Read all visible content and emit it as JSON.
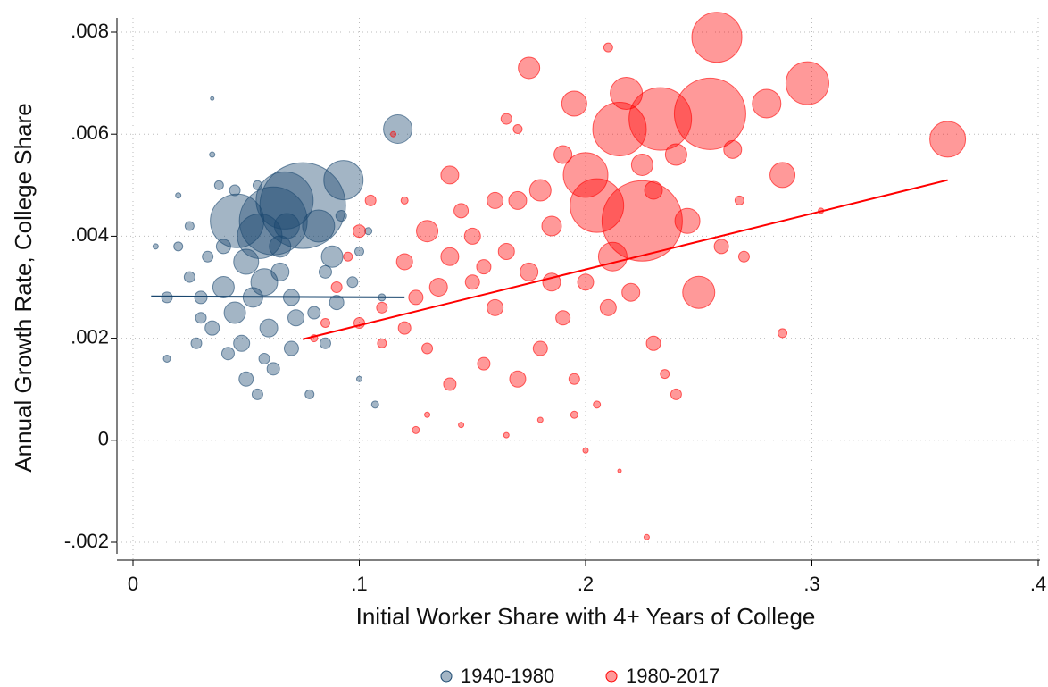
{
  "chart_data": {
    "type": "scatter",
    "x_label": "Initial Worker Share with 4+ Years of College",
    "y_label": "Annual Growth Rate, College Share",
    "xlim": [
      0,
      0.4
    ],
    "ylim": [
      -0.002,
      0.008
    ],
    "xticks": [
      0,
      {
        "value": 0.1,
        "label": ".1"
      },
      {
        "value": 0.2,
        "label": ".2"
      },
      {
        "value": 0.3,
        "label": ".3"
      },
      {
        "value": 0.4,
        "label": ".4"
      }
    ],
    "yticks": [
      {
        "value": -0.002,
        "label": "-.002"
      },
      0,
      {
        "value": 0.002,
        "label": ".002"
      },
      {
        "value": 0.004,
        "label": ".004"
      },
      {
        "value": 0.006,
        "label": ".006"
      },
      {
        "value": 0.008,
        "label": ".008"
      }
    ],
    "grid": true,
    "legend": "bottom",
    "series": [
      {
        "name": "1940-1980",
        "color": "#1a476f",
        "x": [
          0.075,
          0.067,
          0.062,
          0.046,
          0.056,
          0.093,
          0.117,
          0.082,
          0.088,
          0.05,
          0.04,
          0.058,
          0.045,
          0.06,
          0.035,
          0.03,
          0.025,
          0.02,
          0.02,
          0.035,
          0.035,
          0.038,
          0.015,
          0.01,
          0.015,
          0.028,
          0.042,
          0.05,
          0.055,
          0.062,
          0.07,
          0.072,
          0.08,
          0.085,
          0.09,
          0.097,
          0.1,
          0.104,
          0.107,
          0.1,
          0.078,
          0.065,
          0.07,
          0.053,
          0.048,
          0.033,
          0.025,
          0.045,
          0.055,
          0.085,
          0.092,
          0.11,
          0.065,
          0.04,
          0.03,
          0.058,
          0.068
        ],
        "values": [
          0.0046,
          0.0047,
          0.0043,
          0.0043,
          0.004,
          0.0051,
          0.0061,
          0.0042,
          0.0036,
          0.0035,
          0.003,
          0.0031,
          0.0025,
          0.0022,
          0.0022,
          0.0028,
          0.0032,
          0.0038,
          0.0048,
          0.0067,
          0.0056,
          0.005,
          0.0028,
          0.0038,
          0.0016,
          0.0019,
          0.0017,
          0.0012,
          0.0009,
          0.0014,
          0.0018,
          0.0024,
          0.0025,
          0.0019,
          0.0027,
          0.0031,
          0.0037,
          0.0041,
          0.0007,
          0.0012,
          0.0009,
          0.0033,
          0.0028,
          0.0028,
          0.0019,
          0.0036,
          0.0042,
          0.0049,
          0.005,
          0.0033,
          0.0044,
          0.0028,
          0.0038,
          0.0038,
          0.0024,
          0.0016,
          0.0042
        ],
        "sizes": [
          48,
          32,
          38,
          30,
          25,
          22,
          16,
          18,
          12,
          14,
          12,
          15,
          12,
          10,
          8,
          7,
          6,
          5,
          3,
          2,
          3,
          5,
          6,
          3,
          4,
          6,
          7,
          8,
          6,
          7,
          8,
          9,
          7,
          6,
          8,
          6,
          5,
          4,
          4,
          3,
          5,
          10,
          9,
          11,
          9,
          6,
          5,
          6,
          5,
          7,
          6,
          4,
          12,
          8,
          6,
          6,
          14
        ],
        "fit": {
          "x": [
            0.008,
            0.12
          ],
          "values": [
            0.00282,
            0.0028
          ]
        }
      },
      {
        "name": "1980-2017",
        "color": "#ff0000",
        "x": [
          0.258,
          0.255,
          0.233,
          0.215,
          0.225,
          0.205,
          0.2,
          0.218,
          0.298,
          0.36,
          0.28,
          0.287,
          0.25,
          0.245,
          0.24,
          0.212,
          0.195,
          0.175,
          0.19,
          0.17,
          0.16,
          0.185,
          0.15,
          0.14,
          0.13,
          0.12,
          0.135,
          0.15,
          0.16,
          0.175,
          0.18,
          0.17,
          0.155,
          0.14,
          0.13,
          0.125,
          0.11,
          0.1,
          0.105,
          0.095,
          0.09,
          0.085,
          0.08,
          0.115,
          0.12,
          0.13,
          0.125,
          0.145,
          0.165,
          0.18,
          0.195,
          0.2,
          0.215,
          0.227,
          0.205,
          0.195,
          0.23,
          0.24,
          0.235,
          0.287,
          0.27,
          0.26,
          0.21,
          0.22,
          0.19,
          0.2,
          0.21,
          0.165,
          0.17,
          0.145,
          0.11,
          0.1,
          0.155,
          0.165,
          0.185,
          0.225,
          0.23,
          0.265,
          0.268,
          0.304,
          0.14,
          0.12,
          0.18
        ],
        "values": [
          0.0079,
          0.0064,
          0.0063,
          0.0061,
          0.0043,
          0.0046,
          0.0052,
          0.0068,
          0.007,
          0.0059,
          0.0066,
          0.0052,
          0.0029,
          0.0043,
          0.0056,
          0.0036,
          0.0066,
          0.0073,
          0.0056,
          0.0047,
          0.0047,
          0.0042,
          0.004,
          0.0052,
          0.0041,
          0.0035,
          0.003,
          0.0031,
          0.0026,
          0.0033,
          0.0018,
          0.0012,
          0.0015,
          0.0011,
          0.0018,
          0.0028,
          0.0026,
          0.0041,
          0.0047,
          0.0036,
          0.003,
          0.0023,
          0.002,
          0.006,
          0.0047,
          0.0005,
          0.0002,
          0.0003,
          0.0001,
          0.0004,
          0.0005,
          -0.0002,
          -0.0006,
          -0.0019,
          0.0007,
          0.0012,
          0.0019,
          0.0009,
          0.0013,
          0.0021,
          0.0036,
          0.0038,
          0.0026,
          0.0029,
          0.0024,
          0.0031,
          0.0077,
          0.0063,
          0.0061,
          0.0045,
          0.0019,
          0.0023,
          0.0034,
          0.0037,
          0.0031,
          0.0054,
          0.0049,
          0.0057,
          0.0047,
          0.0045,
          0.0036,
          0.0022,
          0.0049
        ],
        "sizes": [
          28,
          40,
          35,
          30,
          45,
          30,
          25,
          18,
          24,
          20,
          16,
          14,
          18,
          14,
          12,
          16,
          14,
          12,
          10,
          10,
          9,
          11,
          9,
          10,
          12,
          9,
          10,
          8,
          9,
          10,
          8,
          9,
          7,
          7,
          6,
          8,
          6,
          7,
          6,
          5,
          6,
          5,
          4,
          3,
          4,
          3,
          4,
          3,
          3,
          3,
          4,
          3,
          2,
          3,
          4,
          6,
          8,
          6,
          5,
          5,
          6,
          8,
          9,
          10,
          8,
          9,
          5,
          6,
          5,
          8,
          5,
          6,
          8,
          9,
          10,
          12,
          10,
          10,
          5,
          3,
          10,
          7,
          12
        ],
        "fit": {
          "x": [
            0.075,
            0.36
          ],
          "values": [
            0.00198,
            0.0051
          ]
        }
      }
    ]
  }
}
